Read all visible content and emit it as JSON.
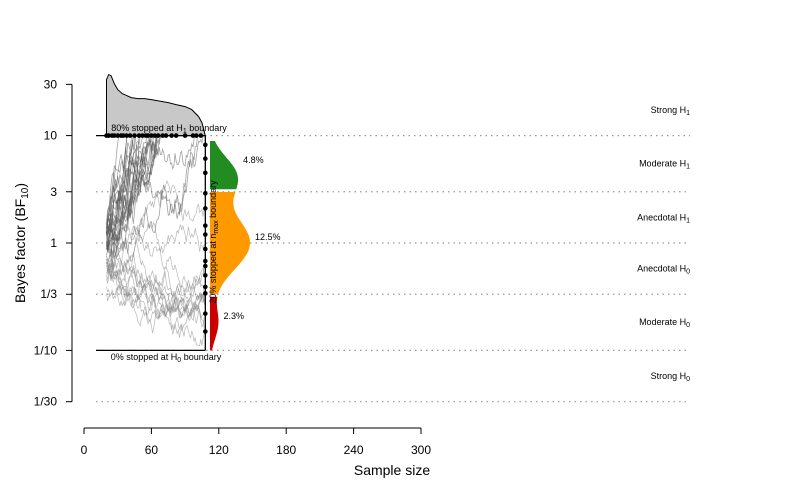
{
  "chart_data": {
    "type": "line",
    "title": "",
    "xlabel": "Sample size",
    "ylabel": "Bayes factor (BF10)",
    "ylabel_main": "Bayes factor (BF",
    "ylabel_sub": "10",
    "ylabel_close": ")",
    "xlim": [
      0,
      300
    ],
    "ylim_bf": [
      0.0333,
      30
    ],
    "y_scale": "log",
    "x_ticks": [
      {
        "value": 0,
        "label": "0"
      },
      {
        "value": 60,
        "label": "60"
      },
      {
        "value": 120,
        "label": "120"
      },
      {
        "value": 180,
        "label": "180"
      },
      {
        "value": 240,
        "label": "240"
      },
      {
        "value": 300,
        "label": "300"
      }
    ],
    "y_ticks": [
      {
        "value": 30,
        "label": "30"
      },
      {
        "value": 10,
        "label": "10"
      },
      {
        "value": 3,
        "label": "3"
      },
      {
        "value": 1,
        "label": "1"
      },
      {
        "value": 0.3333,
        "label": "1/3"
      },
      {
        "value": 0.1,
        "label": "1/10"
      },
      {
        "value": 0.0333,
        "label": "1/30"
      }
    ],
    "evidence_categories": [
      {
        "main": "Strong H",
        "sub": "1",
        "y_bf": 17.3
      },
      {
        "main": "Moderate H",
        "sub": "1",
        "y_bf": 5.48
      },
      {
        "main": "Anecdotal H",
        "sub": "1",
        "y_bf": 1.73
      },
      {
        "main": "Anecdotal H",
        "sub": "0",
        "y_bf": 0.577
      },
      {
        "main": "Moderate H",
        "sub": "0",
        "y_bf": 0.183
      },
      {
        "main": "Strong H",
        "sub": "0",
        "y_bf": 0.0577
      }
    ],
    "boundaries": {
      "h1": 10,
      "h0": 0.1,
      "n_max": 108,
      "n_min": 20
    },
    "annotations": {
      "upper_pre": "80% stopped at H",
      "upper_sub": "1",
      "upper_post": " boundary",
      "lower_pre": "0% stopped at H",
      "lower_sub": "0",
      "lower_post": " boundary",
      "nmax_pre": "20% stopped at n",
      "nmax_sub": "max",
      "nmax_post": " boundary"
    },
    "nmax_distribution": [
      {
        "range": [
          3,
          9
        ],
        "percent": 4.8,
        "label": "4.8%",
        "color": "#228b22"
      },
      {
        "range": [
          0.3333,
          3
        ],
        "percent": 12.5,
        "label": "12.5%",
        "color": "#ff9900"
      },
      {
        "range": [
          0.1,
          0.3333
        ],
        "percent": 2.3,
        "label": "2.3%",
        "color": "#cc0000"
      }
    ],
    "stopping_time_density": {
      "fill": "#c8c8c8",
      "x_range": [
        20,
        108
      ]
    },
    "path_color": "#555555",
    "stop_points_h1_n": [
      20,
      22,
      25,
      27,
      30,
      33,
      35,
      38,
      41,
      45,
      49,
      52,
      55,
      57,
      60,
      63,
      66,
      70,
      73,
      78,
      82,
      90,
      97,
      100,
      104
    ],
    "stop_points_nmax_bf": [
      8.2,
      6.1,
      4.5,
      2.9,
      2.1,
      1.45,
      1.2,
      0.88,
      0.68,
      0.61,
      0.5,
      0.39,
      0.34,
      0.22,
      0.15
    ]
  }
}
